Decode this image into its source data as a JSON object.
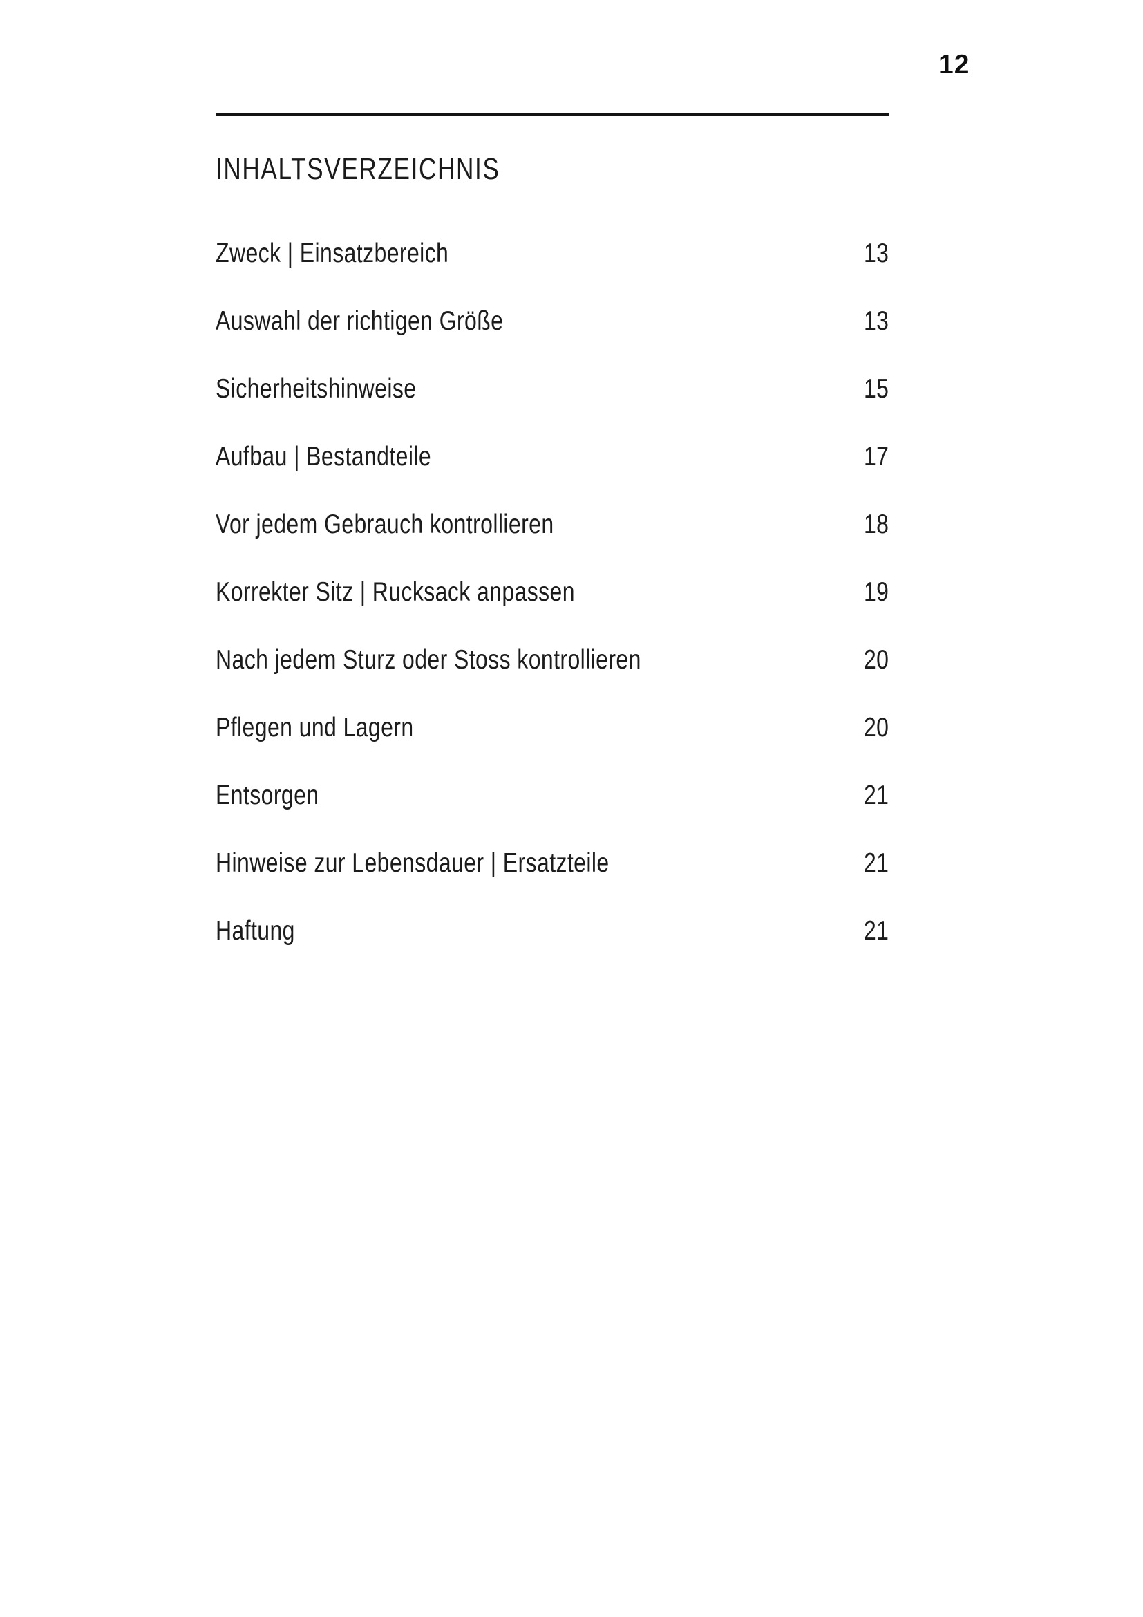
{
  "page": {
    "number": "12",
    "heading": "INHALTSVERZEICHNIS"
  },
  "toc": {
    "entries": [
      {
        "label": "Zweck | Einsatzbereich",
        "page": "13"
      },
      {
        "label": "Auswahl der richtigen Größe",
        "page": "13"
      },
      {
        "label": "Sicherheitshinweise",
        "page": "15"
      },
      {
        "label": "Aufbau | Bestandteile",
        "page": "17"
      },
      {
        "label": "Vor jedem Gebrauch kontrollieren",
        "page": "18"
      },
      {
        "label": "Korrekter Sitz | Rucksack anpassen",
        "page": "19"
      },
      {
        "label": "Nach jedem Sturz oder Stoss kontrollieren",
        "page": "20"
      },
      {
        "label": "Pflegen und Lagern",
        "page": "20"
      },
      {
        "label": "Entsorgen",
        "page": "21"
      },
      {
        "label": "Hinweise zur Lebensdauer | Ersatzteile",
        "page": "21"
      },
      {
        "label": "Haftung",
        "page": "21"
      }
    ]
  }
}
